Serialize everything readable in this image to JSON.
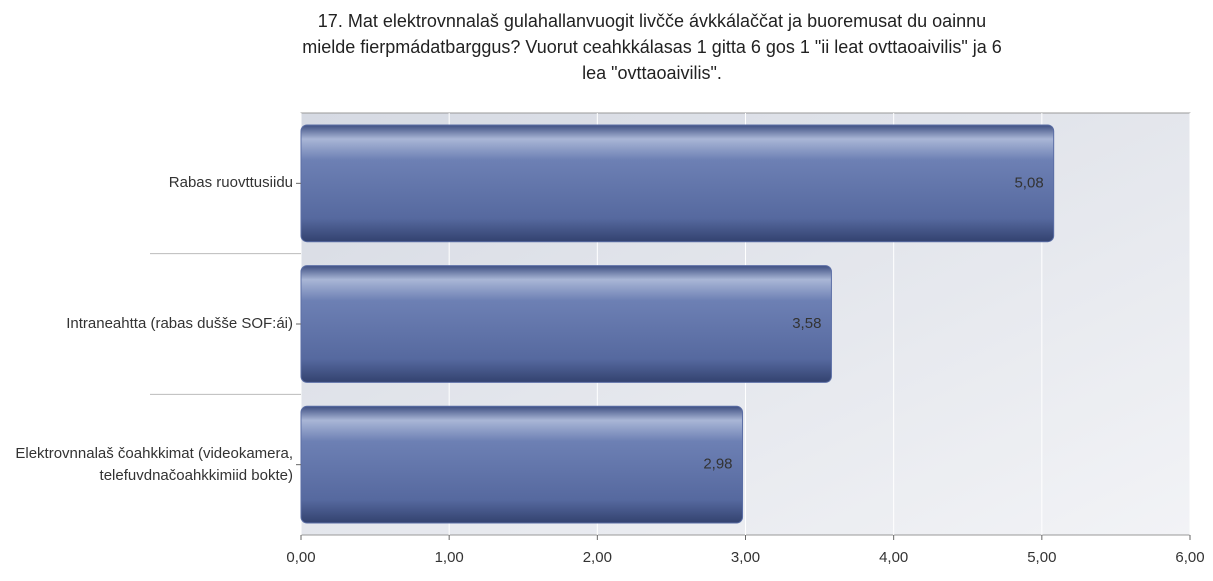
{
  "chart_data": {
    "type": "hbar",
    "title": "17. Mat elektrovnnalaš gulahallanvuogit livčče ávkkálaččat ja buoremusat du oainnu mielde fierpmádatbarggus? Vuorut ceahkkálasas 1 gitta 6 gos 1 \"ii leat ovttaoaivilis\" ja 6 lea \"ovttaoaivilis\".",
    "categories": [
      "Rabas ruovttusiidu",
      "Intraneahtta (rabas dušše SOF:ái)",
      "Elektrovnnalaš čoahkkimat (videokamera, telefuvdnačoahkkimiid bokte)"
    ],
    "values": [
      5.08,
      3.58,
      2.98
    ],
    "value_labels": [
      "5,08",
      "3,58",
      "2,98"
    ],
    "color": "#5b6ea5",
    "xlim": [
      0,
      6
    ],
    "xticks": [
      {
        "value": 0,
        "label": "0,00"
      },
      {
        "value": 1,
        "label": "1,00"
      },
      {
        "value": 2,
        "label": "2,00"
      },
      {
        "value": 3,
        "label": "3,00"
      },
      {
        "value": 4,
        "label": "4,00"
      },
      {
        "value": 5,
        "label": "5,00"
      },
      {
        "value": 6,
        "label": "6,00"
      }
    ],
    "grid": true
  }
}
